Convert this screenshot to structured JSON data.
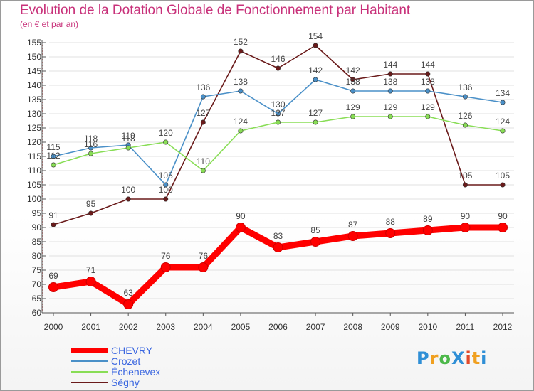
{
  "chart_data": {
    "type": "line",
    "title": "Evolution de la Dotation Globale de Fonctionnement par Habitant",
    "subtitle": "(en € et par an)",
    "xlabel": "",
    "ylabel": "",
    "categories": [
      "2000",
      "2001",
      "2002",
      "2003",
      "2004",
      "2005",
      "2006",
      "2007",
      "2008",
      "2009",
      "2010",
      "2011",
      "2012"
    ],
    "ylim": [
      60,
      155
    ],
    "yticks": [
      60,
      65,
      70,
      75,
      80,
      85,
      90,
      95,
      100,
      105,
      110,
      115,
      120,
      125,
      130,
      135,
      140,
      145,
      150,
      155
    ],
    "series": [
      {
        "name": "CHEVRY",
        "color": "#ff0000",
        "values": [
          69,
          71,
          63,
          76,
          76,
          90,
          83,
          85,
          87,
          88,
          89,
          90,
          90
        ]
      },
      {
        "name": "Crozet",
        "color": "#4a90c8",
        "values": [
          115,
          118,
          119,
          105,
          136,
          138,
          130,
          142,
          138,
          138,
          138,
          136,
          134
        ]
      },
      {
        "name": "Échenevex",
        "color": "#88dd55",
        "values": [
          112,
          116,
          118,
          120,
          110,
          124,
          127,
          127,
          129,
          129,
          129,
          126,
          124
        ]
      },
      {
        "name": "Ségny",
        "color": "#6a1a1a",
        "values": [
          91,
          95,
          100,
          100,
          127,
          152,
          146,
          154,
          142,
          144,
          144,
          105,
          105
        ]
      }
    ]
  },
  "logo": {
    "text": "ProXiti",
    "letters": [
      "P",
      "r",
      "o",
      "X",
      "i",
      "t",
      "i"
    ]
  }
}
